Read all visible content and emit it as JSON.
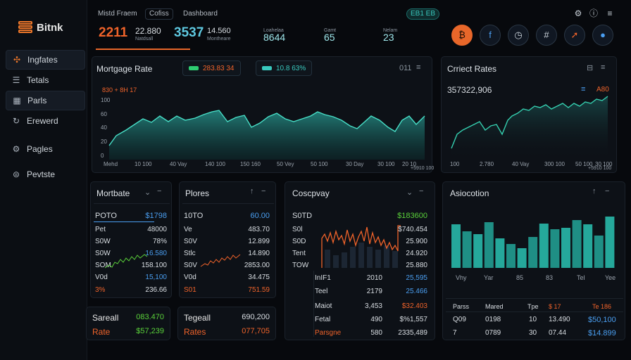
{
  "sidebar": {
    "logo": "Bitnk",
    "items": [
      {
        "label": "Ingfates",
        "icon": "sparkle-icon"
      },
      {
        "label": "Tetals",
        "icon": "list-icon"
      },
      {
        "label": "Parls",
        "icon": "grid-icon"
      },
      {
        "label": "Erewerd",
        "icon": "refresh-icon"
      },
      {
        "label": "Pagles",
        "icon": "settings-icon"
      },
      {
        "label": "Pevtste",
        "icon": "currency-icon"
      }
    ]
  },
  "topbar": {
    "tab1": "Mistd Fraem",
    "tab2": "Cofiss",
    "tab3": "Dashboard",
    "badge": "EB1 EB",
    "stat1_value": "2211",
    "stat2_value": "22.880",
    "stat2_label": "Natdsall",
    "stat3_value": "3537",
    "stat3_sub": "14.560",
    "stat3_label": "Montheare",
    "stat4_label": "Loahelaa",
    "stat4_value": "8644",
    "stat5_label": "Gamt",
    "stat5_value": "65",
    "stat6_label": "Nelam",
    "stat6_value": "23"
  },
  "mortgage": {
    "title": "Mortgage Rate",
    "legend1": "283.83 34",
    "legend2": "10.8 63%",
    "control": "011",
    "annotation": "830 + 8H 17",
    "y_ticks": [
      "100",
      "60",
      "40",
      "20",
      "0"
    ],
    "x_ticks": [
      "Mehd",
      "10 100",
      "40 Vay",
      "140 100",
      "150 160",
      "50 Vey",
      "50 100",
      "30 Day",
      "30 100",
      "20 10",
      "50 100"
    ],
    "x_end": "+5910 100",
    "color": "#2aa198"
  },
  "current": {
    "title": "Crriect Rates",
    "value": "357322,906",
    "badge": "A80",
    "x_ticks": [
      "100",
      "2.780",
      "40 Vay",
      "300 100",
      "50 100",
      "30 100"
    ],
    "x_end": "+5910 100"
  },
  "mortbate": {
    "title": "Mortbate",
    "head_label": "POTO",
    "head_value": "$1798",
    "rows": [
      {
        "label": "Pet",
        "value": "48000"
      },
      {
        "label": "S0W",
        "value": "78%"
      },
      {
        "label": "S0W",
        "value": "16.580"
      },
      {
        "label": "SOM",
        "value": "158.100"
      },
      {
        "label": "V0d",
        "value": "15,100"
      },
      {
        "label": "3%",
        "value": "236.66"
      }
    ]
  },
  "plores": {
    "title": "Plores",
    "head_label": "10TO",
    "head_value": "60.00",
    "rows": [
      {
        "label": "Ve",
        "value": "483.70"
      },
      {
        "label": "S0V",
        "value": "12.899"
      },
      {
        "label": "Stlc",
        "value": "14.890"
      },
      {
        "label": "S0V",
        "value": "2853.00"
      },
      {
        "label": "V0d",
        "value": "34.475"
      },
      {
        "label": "S01",
        "value": "751.59"
      }
    ]
  },
  "coscpvay": {
    "title": "Coscpvay",
    "head_label": "S0TD",
    "head_value": "$183600",
    "left_labels": [
      "S0l",
      "S0D",
      "Tent",
      "TOW"
    ],
    "right_values": [
      "$740.454",
      "25.900",
      "24.920",
      "25.880"
    ],
    "table": [
      {
        "a": "InIF1",
        "b": "2010",
        "c": "25,595"
      },
      {
        "a": "Teel",
        "b": "2179",
        "c": "25.466"
      },
      {
        "a": "Maiot",
        "b": "3,453",
        "c": "$32.403"
      },
      {
        "a": "Fetal",
        "b": "490",
        "c": "$%1,557"
      },
      {
        "a": "Parsgne",
        "b": "580",
        "c": "2335,489"
      }
    ]
  },
  "asiocotion": {
    "title": "Asiocotion",
    "bars": [
      62,
      52,
      48,
      65,
      42,
      34,
      28,
      44,
      63,
      55,
      57,
      68,
      62,
      46,
      73
    ],
    "x_ticks": [
      "Vhy",
      "Yar",
      "85",
      "83",
      "Tel",
      "Yee"
    ],
    "table_head": [
      "Parss",
      "Mared",
      "Tpe",
      "$ 17",
      "Te 186"
    ],
    "table_rows": [
      [
        "Q09",
        "0198",
        "10",
        "13.490",
        "$50,100"
      ],
      [
        "7",
        "0789",
        "30",
        "07.44",
        "$14.899"
      ]
    ]
  },
  "bottom1": {
    "label1": "Sareall",
    "value1": "083.470",
    "label2": "Rate",
    "value2": "$57,239"
  },
  "bottom2": {
    "label1": "Tegeall",
    "value1": "690,200",
    "label2": "Rates",
    "value2": "077,705"
  }
}
